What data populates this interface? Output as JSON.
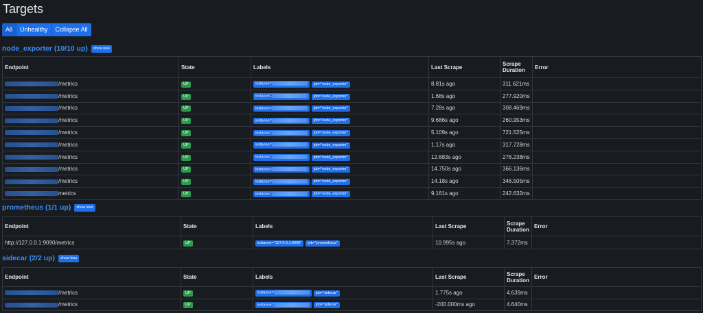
{
  "page_title": "Targets",
  "filters": {
    "all": "All",
    "unhealthy": "Unhealthy",
    "collapse": "Collapse All"
  },
  "headers": {
    "endpoint": "Endpoint",
    "state": "State",
    "labels": "Labels",
    "last_scrape": "Last Scrape",
    "scrape_duration_1": "Scrape",
    "scrape_duration_2": "Duration",
    "error": "Error"
  },
  "sections": {
    "node_exporter": {
      "title": "node_exporter (10/10 up)",
      "show_less": "show less",
      "rows": [
        {
          "endpoint": "/metrics",
          "state": "UP",
          "instance": "instance=",
          "job": "job=\"node_exporter\"",
          "last": "8.81s ago",
          "duration": "311.621ms",
          "error": ""
        },
        {
          "endpoint": "/metrics",
          "state": "UP",
          "instance": "instance=",
          "job": "job=\"node_exporter\"",
          "last": "1.68s ago",
          "duration": "277.920ms",
          "error": ""
        },
        {
          "endpoint": "/metrics",
          "state": "UP",
          "instance": "instance=",
          "job": "job=\"node_exporter\"",
          "last": "7.28s ago",
          "duration": "308.469ms",
          "error": ""
        },
        {
          "endpoint": "/metrics",
          "state": "UP",
          "instance": "instance=",
          "job": "job=\"node_exporter\"",
          "last": "9.686s ago",
          "duration": "260.953ms",
          "error": ""
        },
        {
          "endpoint": "/metrics",
          "state": "UP",
          "instance": "instance=",
          "job": "job=\"node_exporter\"",
          "last": "5.109s ago",
          "duration": "721.525ms",
          "error": ""
        },
        {
          "endpoint": "/metrics",
          "state": "UP",
          "instance": "instance=",
          "job": "job=\"node_exporter\"",
          "last": "1.17s ago",
          "duration": "317.728ms",
          "error": ""
        },
        {
          "endpoint": "/metrics",
          "state": "UP",
          "instance": "instance=",
          "job": "job=\"node_exporter\"",
          "last": "12.683s ago",
          "duration": "276.238ms",
          "error": ""
        },
        {
          "endpoint": "/metrics",
          "state": "UP",
          "instance": "instance=",
          "job": "job=\"node_exporter\"",
          "last": "14.750s ago",
          "duration": "366.136ms",
          "error": ""
        },
        {
          "endpoint": "/metrics",
          "state": "UP",
          "instance": "instance=",
          "job": "job=\"node_exporter\"",
          "last": "14.18s ago",
          "duration": "346.505ms",
          "error": ""
        },
        {
          "endpoint": "metrics",
          "state": "UP",
          "instance": "instance=",
          "job": "job=\"node_exporter\"",
          "last": "9.161s ago",
          "duration": "242.632ms",
          "error": ""
        }
      ]
    },
    "prometheus": {
      "title": "prometheus (1/1 up)",
      "show_less": "show less",
      "rows": [
        {
          "endpoint": "http://127.0.0.1:9090/metrics",
          "state": "UP",
          "instance": "instance=\"127.0.0.1:9090\"",
          "job": "job=\"prometheus\"",
          "last": "10.995s ago",
          "duration": "7.372ms",
          "error": ""
        }
      ]
    },
    "sidecar": {
      "title": "sidecar (2/2 up)",
      "show_less": "show less",
      "rows": [
        {
          "endpoint": "/metrics",
          "state": "UP",
          "instance": "instance=",
          "job": "job=\"sidecar\"",
          "last": "1.775s ago",
          "duration": "4.639ms",
          "error": ""
        },
        {
          "endpoint": "/metrics",
          "state": "UP",
          "instance": "instance=",
          "job": "job=\"sidecar\"",
          "last": "-200.000ms ago",
          "duration": "4.640ms",
          "error": ""
        }
      ]
    }
  }
}
